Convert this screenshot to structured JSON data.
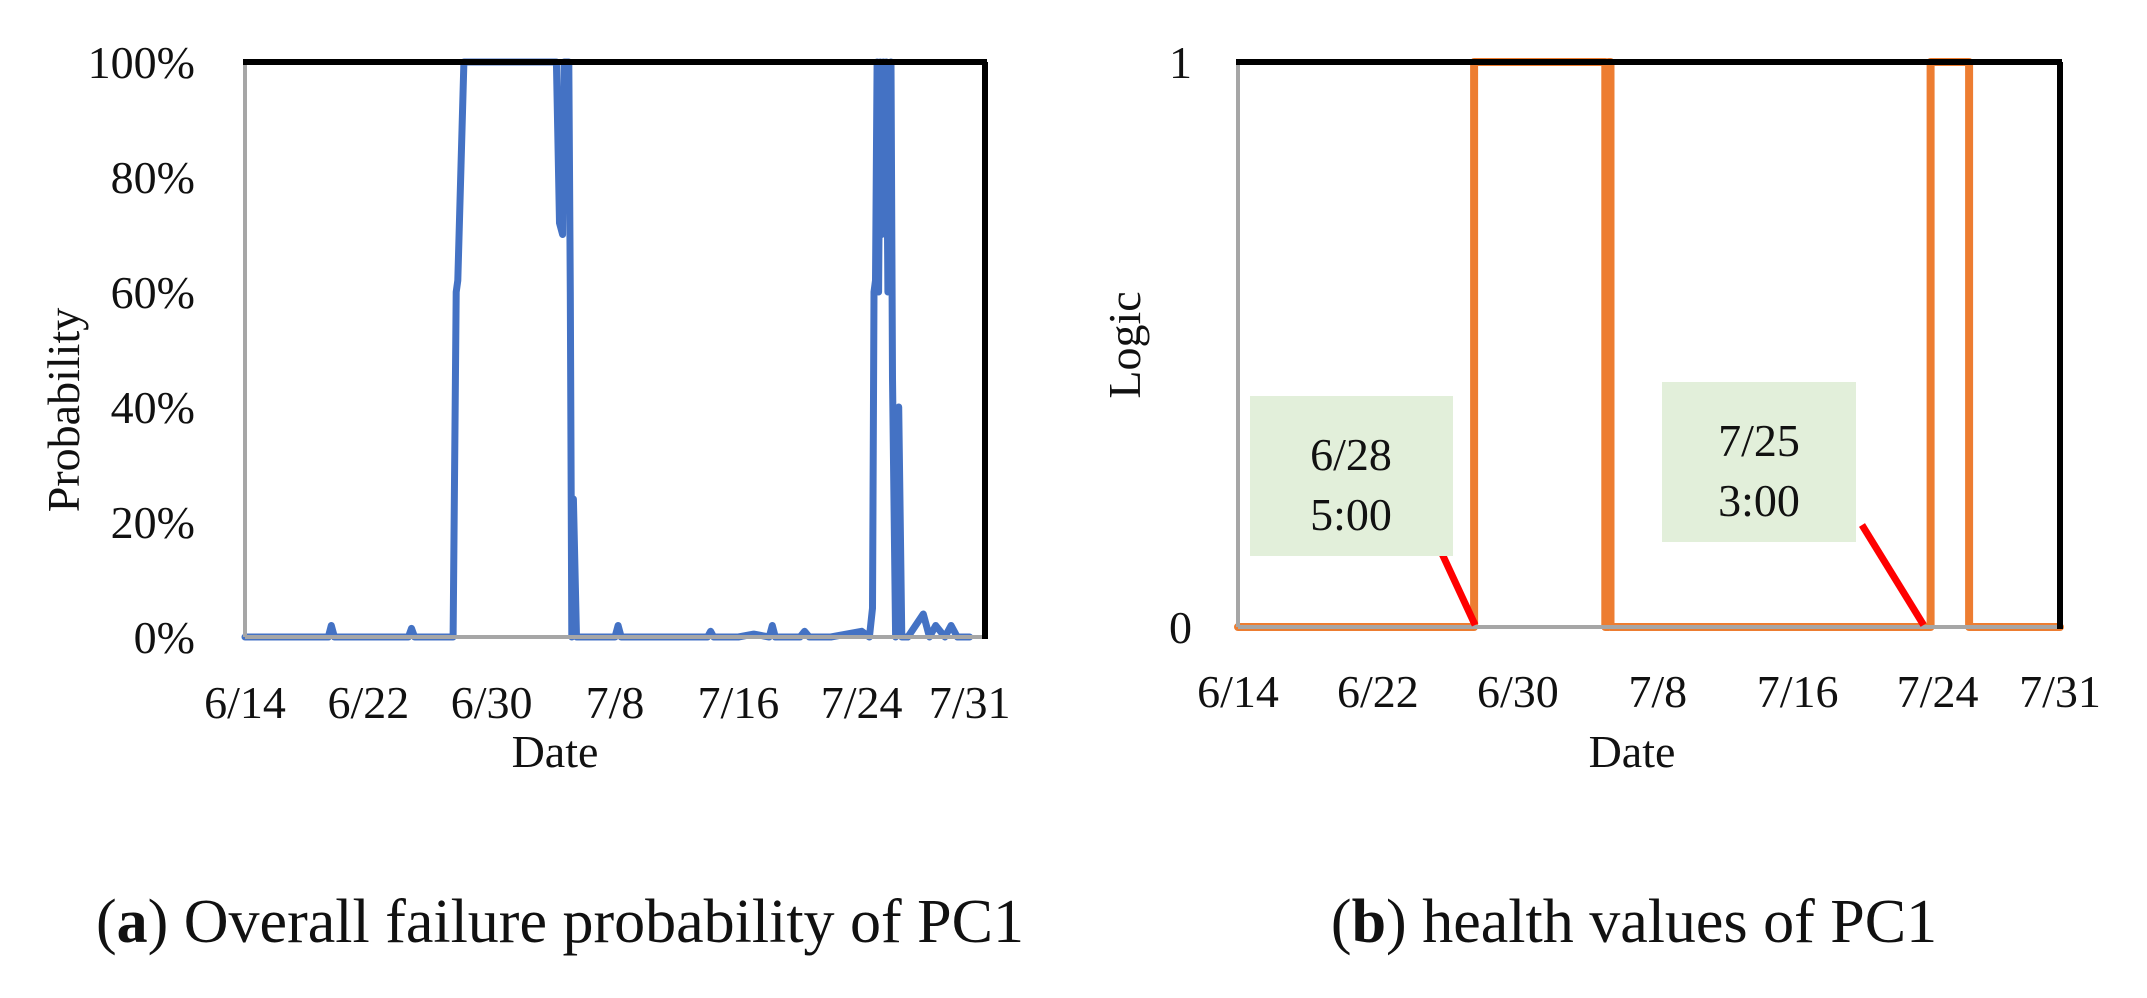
{
  "chart_data": [
    {
      "type": "line",
      "id": "a",
      "caption_letter": "a",
      "caption_text": " Overall failure probability of PC1",
      "xlabel": "Date",
      "ylabel": "Probability",
      "x_ticks": [
        "6/14",
        "6/22",
        "6/30",
        "7/8",
        "7/16",
        "7/24",
        "7/31"
      ],
      "x_tick_days": [
        0,
        8,
        16,
        24,
        32,
        40,
        47
      ],
      "y_ticks": [
        "0%",
        "20%",
        "40%",
        "60%",
        "80%",
        "100%"
      ],
      "y_tick_values": [
        0,
        20,
        40,
        60,
        80,
        100
      ],
      "xlim": [
        0,
        48
      ],
      "ylim": [
        0,
        100
      ],
      "line_color": "#4472C4",
      "series": [
        {
          "name": "Overall failure probability",
          "x": [
            0,
            5.4,
            5.6,
            5.8,
            10.6,
            10.8,
            11.0,
            13.5,
            13.7,
            13.8,
            14.2,
            14.4,
            15.2,
            15.6,
            19.8,
            20.2,
            20.4,
            20.6,
            20.7,
            21.0,
            21.1,
            21.2,
            21.3,
            21.5,
            22.0,
            24.0,
            24.2,
            24.4,
            26.0,
            28.0,
            30.0,
            30.2,
            30.4,
            32.0,
            33.0,
            34.0,
            34.2,
            34.4,
            36.0,
            36.3,
            36.6,
            38.0,
            40.0,
            40.5,
            40.7,
            40.8,
            40.9,
            41.0,
            41.1,
            41.2,
            41.3,
            41.4,
            41.5,
            41.6,
            41.7,
            41.9,
            42.0,
            42.2,
            42.4,
            42.6,
            42.8,
            43.0,
            44.0,
            44.4,
            44.8,
            45.4,
            45.8,
            46.2,
            47.0
          ],
          "y": [
            0,
            0,
            2,
            0,
            0,
            1.5,
            0,
            0,
            60,
            62,
            100,
            100,
            100,
            100,
            100,
            100,
            72,
            70,
            100,
            100,
            60,
            0,
            24,
            0,
            0,
            0,
            2,
            0,
            0,
            0,
            0,
            1,
            0,
            0,
            0.5,
            0,
            2,
            0,
            0,
            1,
            0,
            0,
            1,
            0,
            5,
            60,
            62,
            100,
            60,
            100,
            70,
            100,
            72,
            100,
            60,
            100,
            45,
            0,
            40,
            0,
            0,
            0,
            4,
            0,
            2,
            0,
            2,
            0,
            0
          ]
        }
      ]
    },
    {
      "type": "line",
      "id": "b",
      "caption_letter": "b",
      "caption_text": " health values of PC1",
      "xlabel": "Date",
      "ylabel": "Logic",
      "x_ticks": [
        "6/14",
        "6/22",
        "6/30",
        "7/8",
        "7/16",
        "7/24",
        "7/31"
      ],
      "x_tick_days": [
        0,
        8,
        16,
        24,
        32,
        40,
        47
      ],
      "y_ticks": [
        "0",
        "1"
      ],
      "y_tick_values": [
        0,
        1
      ],
      "xlim": [
        0,
        47
      ],
      "ylim": [
        0,
        1
      ],
      "line_color": "#ED7D31",
      "series": [
        {
          "name": "Health logic value",
          "x": [
            0,
            13.5,
            13.5,
            21.0,
            21.0,
            21.2,
            21.2,
            21.3,
            21.3,
            39.6,
            39.6,
            41.8,
            41.8,
            47.0
          ],
          "y": [
            0,
            0,
            1,
            1,
            0,
            0,
            1,
            1,
            0,
            0,
            1,
            1,
            0,
            0
          ]
        }
      ],
      "annotations": [
        {
          "lines": [
            "6/28",
            "5:00"
          ],
          "target_x": 13.5,
          "target_y": 0
        },
        {
          "lines": [
            "7/25",
            "3:00"
          ],
          "target_x": 39.6,
          "target_y": 0
        }
      ],
      "leader_color": "#FF0000",
      "box_color": "#E2EFDA"
    }
  ]
}
